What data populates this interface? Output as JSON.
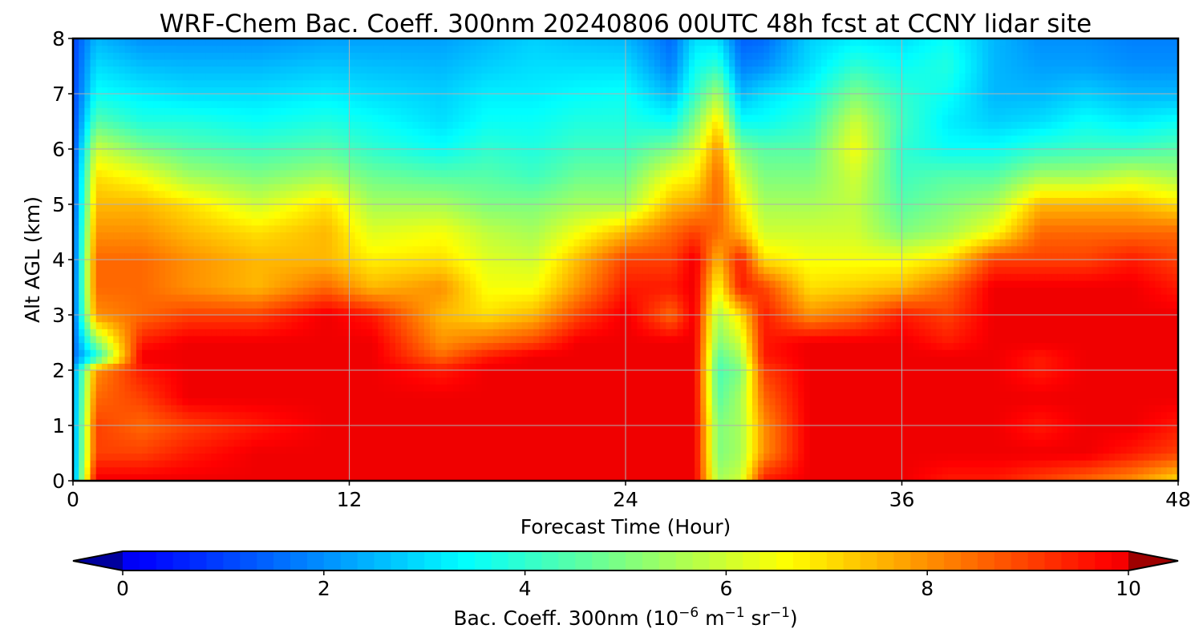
{
  "chart_data": {
    "type": "heatmap",
    "title": "WRF-Chem Bac. Coeff. 300nm  20240806 00UTC 48h fcst at CCNY lidar site",
    "xlabel": "Forecast Time (Hour)",
    "ylabel": "Alt AGL (km)",
    "xlim": [
      0,
      48
    ],
    "ylim": [
      0,
      8
    ],
    "x_ticks": [
      "0",
      "12",
      "24",
      "36",
      "48"
    ],
    "y_ticks": [
      "0",
      "1",
      "2",
      "3",
      "4",
      "5",
      "6",
      "7",
      "8"
    ],
    "grid": true,
    "colormap": "jet",
    "colorbar": {
      "label_main": "Bac. Coeff. 300nm  (10",
      "label_exp1": "−6",
      "label_mid": " m",
      "label_exp2": "−1",
      "label_mid2": " sr",
      "label_exp3": "−1",
      "label_end": ")",
      "range": [
        0,
        10
      ],
      "ticks": [
        "0",
        "2",
        "4",
        "6",
        "8",
        "10"
      ],
      "extend": "both",
      "orientation": "horizontal",
      "placement": "bottom"
    },
    "z_units": "10^-6 m^-1 sr^-1",
    "z_levels_km": [
      0,
      0.5,
      1,
      1.5,
      2,
      2.25,
      2.5,
      3,
      3.5,
      4,
      4.5,
      5,
      5.5,
      6,
      6.5,
      7,
      7.5,
      8
    ],
    "columns": [
      {
        "hour": 0,
        "values": [
          2.0,
          2.0,
          2.0,
          2.0,
          2.0,
          1.5,
          1.4,
          1.3,
          1.3,
          1.2,
          1.2,
          1.1,
          1.1,
          1.0,
          1.0,
          1.0,
          1.0,
          1.0
        ]
      },
      {
        "hour": 1,
        "values": [
          10,
          9.0,
          9.0,
          8.5,
          8.0,
          3.5,
          5.0,
          8.0,
          8.5,
          8.5,
          8.0,
          7.5,
          7.0,
          6.0,
          4.5,
          3.5,
          3.0,
          2.5
        ]
      },
      {
        "hour": 3,
        "values": [
          10,
          9.0,
          8.5,
          9.0,
          9.5,
          10,
          9.5,
          8.5,
          8.5,
          8.5,
          8.0,
          7.5,
          6.5,
          5.0,
          3.8,
          3.2,
          2.6,
          2.0
        ]
      },
      {
        "hour": 5,
        "values": [
          10,
          9.5,
          9.0,
          10,
          10,
          10,
          10,
          9.0,
          8.0,
          8.0,
          7.5,
          7.0,
          5.5,
          4.5,
          3.8,
          3.0,
          2.5,
          2.0
        ]
      },
      {
        "hour": 8,
        "values": [
          10,
          10,
          9.5,
          10,
          10,
          10,
          10,
          9.0,
          7.5,
          7.5,
          7.0,
          6.0,
          5.0,
          4.2,
          3.5,
          3.0,
          2.5,
          2.0
        ]
      },
      {
        "hour": 11,
        "values": [
          10,
          10,
          10,
          10,
          10,
          10,
          10,
          10,
          8.5,
          7.5,
          7.5,
          7.0,
          5.5,
          4.5,
          3.8,
          3.2,
          2.7,
          2.2
        ]
      },
      {
        "hour": 13,
        "values": [
          10,
          10,
          10,
          10,
          10,
          10,
          10,
          9.5,
          7.5,
          6.8,
          6.2,
          5.5,
          4.8,
          4.0,
          3.5,
          3.0,
          2.6,
          2.2
        ]
      },
      {
        "hour": 16,
        "values": [
          10,
          10,
          10,
          10,
          9.5,
          8.5,
          8.0,
          7.5,
          8.0,
          7.0,
          6.5,
          5.5,
          4.5,
          3.5,
          3.0,
          2.8,
          2.5,
          2.2
        ]
      },
      {
        "hour": 18,
        "values": [
          10,
          10,
          10,
          10,
          10,
          9.5,
          8.5,
          7.0,
          6.5,
          6.2,
          5.8,
          5.0,
          4.5,
          4.0,
          3.5,
          3.2,
          2.8,
          2.5
        ]
      },
      {
        "hour": 20,
        "values": [
          10,
          10,
          10,
          10,
          10,
          10,
          9.0,
          7.5,
          6.5,
          6.0,
          5.5,
          5.0,
          4.2,
          3.8,
          3.5,
          3.2,
          3.0,
          2.8
        ]
      },
      {
        "hour": 22,
        "values": [
          10,
          10,
          10,
          10,
          10,
          10,
          10,
          9.0,
          8.0,
          7.5,
          6.5,
          5.5,
          4.8,
          4.2,
          3.8,
          3.4,
          3.0,
          2.6
        ]
      },
      {
        "hour": 24,
        "values": [
          10,
          10,
          10,
          10,
          10,
          10,
          10,
          10,
          9.5,
          9.0,
          7.5,
          5.5,
          4.8,
          4.2,
          3.8,
          3.5,
          3.0,
          2.5
        ]
      },
      {
        "hour": 26,
        "values": [
          10,
          10,
          10,
          10,
          10,
          10,
          10,
          8.5,
          9.5,
          9.0,
          8.5,
          7.5,
          6.5,
          5.0,
          3.5,
          2.5,
          1.8,
          1.5
        ]
      },
      {
        "hour": 27,
        "values": [
          10,
          10,
          10,
          10,
          10,
          10,
          10,
          10,
          10,
          10,
          9.0,
          7.8,
          6.8,
          6.0,
          5.0,
          4.0,
          3.5,
          3.0
        ]
      },
      {
        "hour": 28,
        "values": [
          5.5,
          5.0,
          5.0,
          4.5,
          4.3,
          4.5,
          5.0,
          5.5,
          6.5,
          7.5,
          8.5,
          8.5,
          8.5,
          8.0,
          7.0,
          5.5,
          4.0,
          3.0
        ]
      },
      {
        "hour": 29,
        "values": [
          6.0,
          5.5,
          5.5,
          5.5,
          5.0,
          5.5,
          6.0,
          7.0,
          9.5,
          9.5,
          7.5,
          6.8,
          6.0,
          5.0,
          3.5,
          2.5,
          1.8,
          1.4
        ]
      },
      {
        "hour": 30,
        "values": [
          9.5,
          8.0,
          8.0,
          8.5,
          9.0,
          9.5,
          9.5,
          9.5,
          9.0,
          7.0,
          6.0,
          5.5,
          5.0,
          4.5,
          3.5,
          3.0,
          2.0,
          1.5
        ]
      },
      {
        "hour": 32,
        "values": [
          10,
          10,
          10,
          10,
          10,
          10,
          10,
          8.0,
          7.0,
          6.5,
          6.0,
          5.5,
          5.0,
          4.5,
          4.0,
          3.5,
          3.0,
          2.8
        ]
      },
      {
        "hour": 34,
        "values": [
          10,
          10,
          10,
          10,
          10,
          10,
          10,
          8.5,
          7.2,
          6.5,
          6.0,
          5.8,
          6.0,
          6.5,
          6.0,
          5.0,
          4.0,
          3.2
        ]
      },
      {
        "hour": 36,
        "values": [
          10,
          10,
          10,
          10,
          10,
          10,
          10,
          9.5,
          7.5,
          6.5,
          5.0,
          4.5,
          4.2,
          4.0,
          4.2,
          4.0,
          3.5,
          3.0
        ]
      },
      {
        "hour": 38,
        "values": [
          9.5,
          10,
          10,
          10,
          10,
          10,
          9.5,
          9.0,
          8.5,
          7.0,
          5.5,
          5.0,
          4.5,
          3.5,
          3.2,
          3.5,
          3.8,
          3.5
        ]
      },
      {
        "hour": 40,
        "values": [
          9.5,
          10,
          10,
          10,
          10,
          10,
          10,
          10,
          10,
          9.0,
          6.5,
          5.5,
          4.5,
          3.5,
          2.8,
          2.5,
          2.5,
          2.5
        ]
      },
      {
        "hour": 42,
        "values": [
          9.0,
          10,
          9.5,
          10,
          9.5,
          9.5,
          10,
          10,
          10,
          9.0,
          8.5,
          7.5,
          5.5,
          4.0,
          3.0,
          2.5,
          2.2,
          2.0
        ]
      },
      {
        "hour": 44,
        "values": [
          8.5,
          10,
          10,
          10,
          10,
          10,
          10,
          10,
          10,
          9.0,
          8.5,
          7.5,
          5.5,
          4.2,
          3.5,
          2.8,
          2.2,
          2.0
        ]
      },
      {
        "hour": 46,
        "values": [
          8.0,
          9.5,
          10,
          10,
          10,
          10,
          10,
          10,
          10,
          9.5,
          8.5,
          7.5,
          6.0,
          4.2,
          3.2,
          2.5,
          2.0,
          1.8
        ]
      },
      {
        "hour": 48,
        "values": [
          7.0,
          9.0,
          9.5,
          10,
          10,
          10,
          10,
          10,
          9.5,
          9.0,
          8.5,
          7.0,
          5.5,
          4.5,
          3.5,
          2.5,
          2.0,
          1.8
        ]
      }
    ]
  }
}
